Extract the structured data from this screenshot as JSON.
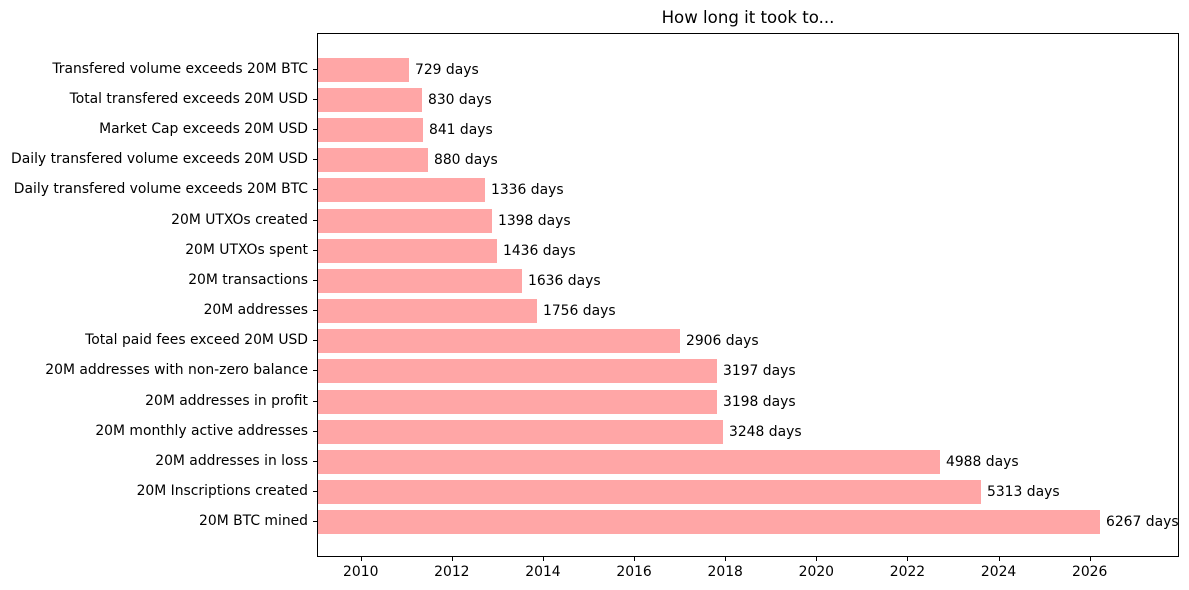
{
  "figure": {
    "background": "#ffffff"
  },
  "chart_data": {
    "type": "bar",
    "orientation": "horizontal",
    "title": "How long it took to...",
    "categories": [
      "Transfered volume exceeds 20M BTC",
      "Total transfered exceeds 20M USD",
      "Market Cap exceeds 20M USD",
      "Daily transfered volume exceeds 20M USD",
      "Daily transfered volume exceeds 20M BTC",
      "20M UTXOs created",
      "20M UTXOs spent",
      "20M transactions",
      "20M addresses",
      "Total paid fees exceed 20M USD",
      "20M addresses with non-zero balance",
      "20M addresses in profit",
      "20M monthly active addresses",
      "20M addresses in loss",
      "20M Inscriptions created",
      "20M BTC mined"
    ],
    "values": [
      729,
      830,
      841,
      880,
      1336,
      1398,
      1436,
      1636,
      1756,
      2906,
      3197,
      3198,
      3248,
      4988,
      5313,
      6267
    ],
    "value_unit": "days",
    "value_suffix": " days",
    "bar_color": "#ffa6a6",
    "axis_color": "#000000",
    "text_color": "#000000",
    "grid": false,
    "legend": null,
    "x_axis": {
      "ticks": [
        2010,
        2012,
        2014,
        2016,
        2018,
        2020,
        2022,
        2024,
        2026
      ],
      "xlim": [
        2009.04,
        2027.96
      ],
      "days_per_year": 365.25
    },
    "bar_height_fraction": 0.8,
    "y_margin_fraction": 0.05
  }
}
